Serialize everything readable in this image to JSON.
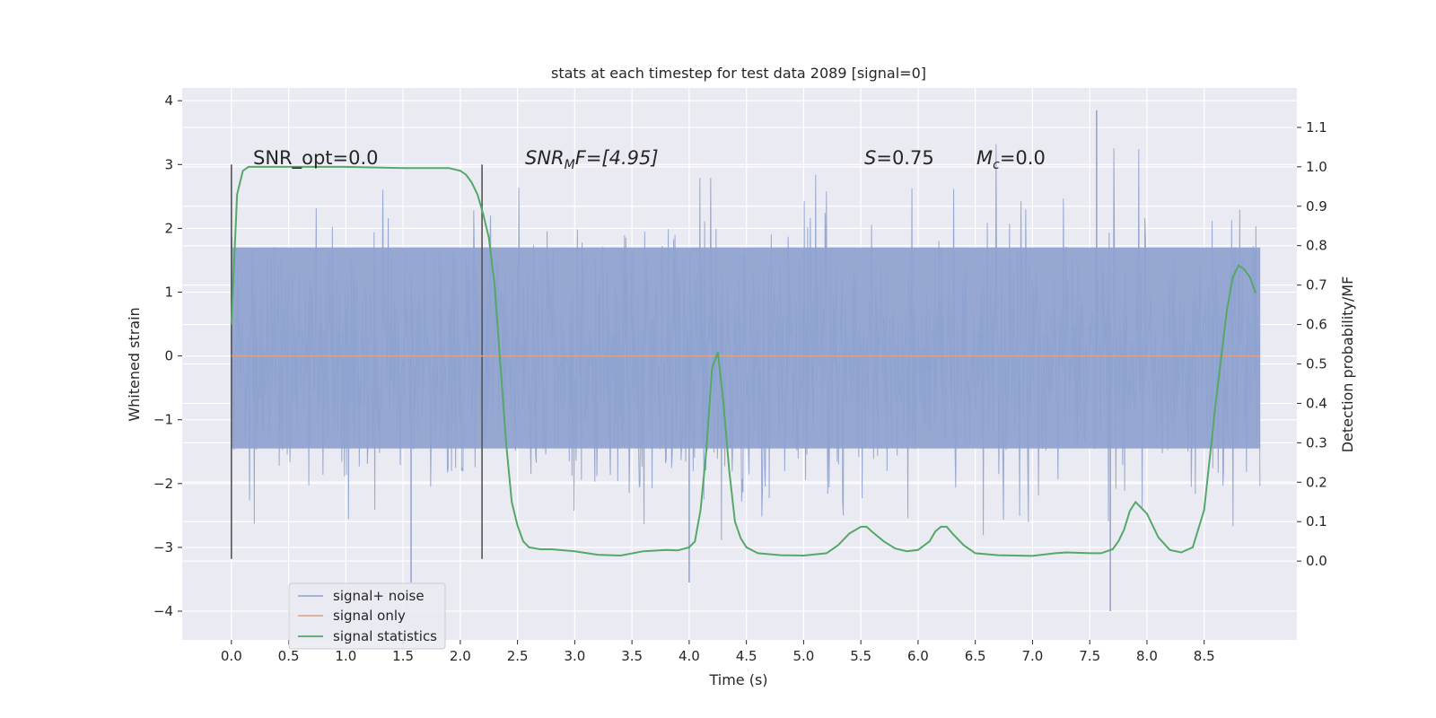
{
  "chart_data": {
    "type": "line",
    "title": "stats at each timestep for test data 2089 [signal=0]",
    "xlabel": "Time (s)",
    "ylabel": "Whitened strain",
    "y2label": "Detection probability/MF",
    "xlim": [
      -0.43,
      9.31
    ],
    "ylim": [
      -4.45,
      4.2
    ],
    "y2lim": [
      -0.2,
      1.2
    ],
    "x_ticks": [
      "0.0",
      "0.5",
      "1.0",
      "1.5",
      "2.0",
      "2.5",
      "3.0",
      "3.5",
      "4.0",
      "4.5",
      "5.0",
      "5.5",
      "6.0",
      "6.5",
      "7.0",
      "7.5",
      "8.0",
      "8.5"
    ],
    "y_ticks": [
      "4",
      "3",
      "2",
      "1",
      "0",
      "−1",
      "−2",
      "−3",
      "−4"
    ],
    "y2_ticks": [
      "1.1",
      "1.0",
      "0.9",
      "0.8",
      "0.7",
      "0.6",
      "0.5",
      "0.4",
      "0.3",
      "0.2",
      "0.1",
      "0.0"
    ],
    "grid": true,
    "legend_position": "lower-left",
    "annotations": {
      "snr_opt": "SNR_opt=0.0",
      "snr_mf": "SNR",
      "snr_mf_sub": "M",
      "snr_mf_rest": "F=[4.95]",
      "s_stat": "S",
      "s_value": "=0.75",
      "mc": "M",
      "mc_sub": "c",
      "mc_value": "=0.0"
    },
    "window_markers": [
      0.0,
      2.19
    ],
    "series": [
      {
        "name": "signal+ noise",
        "color": "#8ea2cf",
        "x_range": [
          0.0,
          8.99
        ],
        "envelope_core": [
          -1.45,
          1.7
        ],
        "envelope_peaks": [
          -3.2,
          3.4
        ],
        "extremes": [
          [
            1.57,
            -3.55
          ],
          [
            4.0,
            -3.55
          ],
          [
            7.68,
            -4.0
          ],
          [
            7.56,
            3.85
          ]
        ]
      },
      {
        "name": "signal only",
        "color": "#dd9f85",
        "x": [
          0.0,
          8.99
        ],
        "y": [
          0.0,
          0.0
        ]
      },
      {
        "name": "signal statistics",
        "color": "#55a868",
        "axis": "right",
        "x": [
          0.0,
          0.05,
          0.1,
          0.15,
          0.2,
          0.3,
          0.5,
          1.0,
          1.5,
          1.9,
          2.0,
          2.05,
          2.1,
          2.15,
          2.2,
          2.25,
          2.3,
          2.35,
          2.4,
          2.45,
          2.5,
          2.55,
          2.6,
          2.7,
          2.8,
          3.0,
          3.2,
          3.4,
          3.6,
          3.8,
          3.9,
          4.0,
          4.05,
          4.1,
          4.15,
          4.2,
          4.25,
          4.3,
          4.35,
          4.4,
          4.45,
          4.5,
          4.6,
          4.8,
          5.0,
          5.2,
          5.3,
          5.4,
          5.5,
          5.55,
          5.6,
          5.7,
          5.8,
          5.9,
          6.0,
          6.1,
          6.15,
          6.2,
          6.25,
          6.3,
          6.4,
          6.5,
          6.7,
          7.0,
          7.2,
          7.3,
          7.5,
          7.6,
          7.7,
          7.75,
          7.8,
          7.85,
          7.9,
          8.0,
          8.1,
          8.2,
          8.3,
          8.4,
          8.5,
          8.6,
          8.7,
          8.75,
          8.8,
          8.85,
          8.9,
          8.95
        ],
        "y": [
          0.6,
          0.93,
          0.99,
          1.0,
          1.0,
          1.0,
          1.0,
          1.0,
          0.997,
          0.997,
          0.99,
          0.98,
          0.96,
          0.93,
          0.88,
          0.82,
          0.7,
          0.5,
          0.3,
          0.15,
          0.09,
          0.05,
          0.035,
          0.03,
          0.03,
          0.025,
          0.016,
          0.014,
          0.025,
          0.028,
          0.027,
          0.035,
          0.05,
          0.13,
          0.28,
          0.49,
          0.53,
          0.4,
          0.23,
          0.1,
          0.058,
          0.035,
          0.02,
          0.015,
          0.014,
          0.02,
          0.04,
          0.07,
          0.087,
          0.087,
          0.074,
          0.05,
          0.032,
          0.025,
          0.028,
          0.05,
          0.075,
          0.087,
          0.087,
          0.07,
          0.04,
          0.02,
          0.015,
          0.013,
          0.02,
          0.022,
          0.02,
          0.02,
          0.03,
          0.05,
          0.08,
          0.127,
          0.15,
          0.12,
          0.06,
          0.028,
          0.022,
          0.035,
          0.13,
          0.4,
          0.64,
          0.72,
          0.75,
          0.74,
          0.72,
          0.68
        ]
      }
    ]
  }
}
